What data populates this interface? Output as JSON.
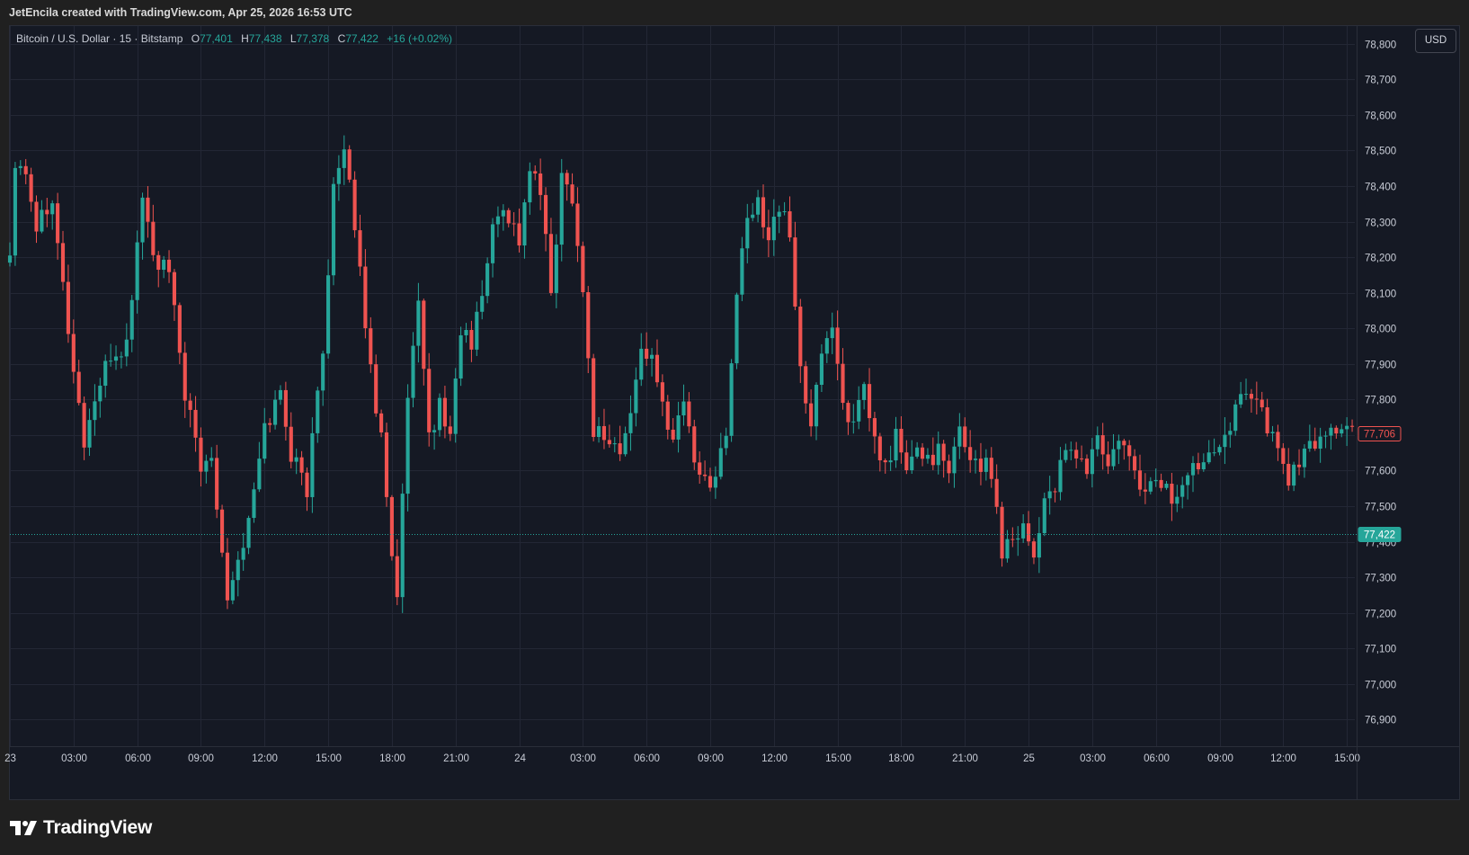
{
  "header": {
    "attribution": "JetEncila created with TradingView.com, Apr 25, 2026 16:53 UTC"
  },
  "legend": {
    "symbol": "Bitcoin / U.S. Dollar · 15 · Bitstamp",
    "open_label": "O",
    "open": "77,401",
    "high_label": "H",
    "high": "77,438",
    "low_label": "L",
    "low": "77,378",
    "close_label": "C",
    "close": "77,422",
    "change": "+16 (+0.02%)"
  },
  "toolbar": {
    "currency": "USD"
  },
  "footer": {
    "brand": "TradingView"
  },
  "colors": {
    "up": "#26a69a",
    "down": "#ef5350",
    "background": "#151924",
    "grid": "#232735",
    "axis_text": "#c8ccd6"
  },
  "chart_data": {
    "type": "candlestick",
    "y_ticks": [
      76900,
      77000,
      77100,
      77200,
      77300,
      77400,
      77500,
      77600,
      77700,
      77800,
      77900,
      78000,
      78100,
      78200,
      78300,
      78400,
      78500,
      78600,
      78700,
      78800
    ],
    "y_tick_labels": [
      "76,900",
      "77,000",
      "77,100",
      "77,200",
      "77,300",
      "77,400",
      "77,500",
      "77,600",
      "77,700",
      "77,800",
      "77,900",
      "78,000",
      "78,100",
      "78,200",
      "78,300",
      "78,400",
      "78,500",
      "78,600",
      "78,700",
      "78,800"
    ],
    "ylim": [
      76825,
      78850
    ],
    "x_ticks": [
      {
        "label": "23",
        "bar": 0
      },
      {
        "label": "03:00",
        "bar": 12
      },
      {
        "label": "06:00",
        "bar": 24
      },
      {
        "label": "09:00",
        "bar": 36
      },
      {
        "label": "12:00",
        "bar": 48
      },
      {
        "label": "15:00",
        "bar": 60
      },
      {
        "label": "18:00",
        "bar": 72
      },
      {
        "label": "21:00",
        "bar": 84
      },
      {
        "label": "24",
        "bar": 96
      },
      {
        "label": "03:00",
        "bar": 108
      },
      {
        "label": "06:00",
        "bar": 120
      },
      {
        "label": "09:00",
        "bar": 132
      },
      {
        "label": "12:00",
        "bar": 144
      },
      {
        "label": "15:00",
        "bar": 156
      },
      {
        "label": "18:00",
        "bar": 168
      },
      {
        "label": "21:00",
        "bar": 180
      },
      {
        "label": "25",
        "bar": 192
      },
      {
        "label": "03:00",
        "bar": 204
      },
      {
        "label": "06:00",
        "bar": 216
      },
      {
        "label": "09:00",
        "bar": 228
      },
      {
        "label": "12:00",
        "bar": 240
      },
      {
        "label": "15:00",
        "bar": 252
      }
    ],
    "price_labels": [
      {
        "value": 77706,
        "text": "77,706",
        "style": "outline-down"
      },
      {
        "value": 77422,
        "text": "77,422",
        "style": "filled-up",
        "line": true
      }
    ],
    "anchors": [
      [
        0,
        78210
      ],
      [
        1,
        78480
      ],
      [
        3,
        78450
      ],
      [
        5,
        78290
      ],
      [
        8,
        78380
      ],
      [
        10,
        78120
      ],
      [
        12,
        77880
      ],
      [
        14,
        77680
      ],
      [
        16,
        77800
      ],
      [
        19,
        77920
      ],
      [
        22,
        77950
      ],
      [
        25,
        78380
      ],
      [
        27,
        78200
      ],
      [
        30,
        78150
      ],
      [
        33,
        77820
      ],
      [
        36,
        77600
      ],
      [
        38,
        77650
      ],
      [
        41,
        77250
      ],
      [
        45,
        77450
      ],
      [
        48,
        77720
      ],
      [
        51,
        77820
      ],
      [
        53,
        77650
      ],
      [
        56,
        77550
      ],
      [
        59,
        77950
      ],
      [
        61,
        78400
      ],
      [
        63,
        78480
      ],
      [
        65,
        78300
      ],
      [
        68,
        77880
      ],
      [
        70,
        77700
      ],
      [
        72,
        77380
      ],
      [
        73,
        77230
      ],
      [
        75,
        77800
      ],
      [
        77,
        78050
      ],
      [
        79,
        77700
      ],
      [
        81,
        77780
      ],
      [
        83,
        77700
      ],
      [
        85,
        78000
      ],
      [
        87,
        77950
      ],
      [
        89,
        78100
      ],
      [
        91,
        78280
      ],
      [
        93,
        78350
      ],
      [
        96,
        78250
      ],
      [
        98,
        78450
      ],
      [
        100,
        78380
      ],
      [
        102,
        78100
      ],
      [
        104,
        78420
      ],
      [
        106,
        78380
      ],
      [
        108,
        78100
      ],
      [
        110,
        77720
      ],
      [
        112,
        77700
      ],
      [
        115,
        77650
      ],
      [
        117,
        77750
      ],
      [
        119,
        77960
      ],
      [
        121,
        77900
      ],
      [
        123,
        77780
      ],
      [
        125,
        77700
      ],
      [
        127,
        77800
      ],
      [
        129,
        77640
      ],
      [
        131,
        77560
      ],
      [
        133,
        77600
      ],
      [
        135,
        77700
      ],
      [
        137,
        78100
      ],
      [
        139,
        78300
      ],
      [
        141,
        78350
      ],
      [
        143,
        78270
      ],
      [
        145,
        78350
      ],
      [
        147,
        78250
      ],
      [
        149,
        77900
      ],
      [
        151,
        77700
      ],
      [
        153,
        77950
      ],
      [
        155,
        78000
      ],
      [
        157,
        77800
      ],
      [
        159,
        77720
      ],
      [
        161,
        77820
      ],
      [
        163,
        77680
      ],
      [
        165,
        77600
      ],
      [
        167,
        77700
      ],
      [
        169,
        77600
      ],
      [
        171,
        77650
      ],
      [
        173,
        77640
      ],
      [
        175,
        77650
      ],
      [
        177,
        77580
      ],
      [
        179,
        77720
      ],
      [
        181,
        77640
      ],
      [
        183,
        77620
      ],
      [
        185,
        77600
      ],
      [
        187,
        77380
      ],
      [
        189,
        77420
      ],
      [
        191,
        77450
      ],
      [
        193,
        77360
      ],
      [
        195,
        77520
      ],
      [
        197,
        77560
      ],
      [
        199,
        77640
      ],
      [
        201,
        77650
      ],
      [
        203,
        77600
      ],
      [
        205,
        77700
      ],
      [
        207,
        77600
      ],
      [
        209,
        77690
      ],
      [
        211,
        77620
      ],
      [
        213,
        77560
      ],
      [
        215,
        77560
      ],
      [
        217,
        77570
      ],
      [
        219,
        77520
      ],
      [
        221,
        77560
      ],
      [
        223,
        77600
      ],
      [
        225,
        77650
      ],
      [
        227,
        77670
      ],
      [
        229,
        77720
      ],
      [
        231,
        77760
      ],
      [
        233,
        77840
      ],
      [
        235,
        77800
      ],
      [
        237,
        77720
      ],
      [
        239,
        77660
      ],
      [
        241,
        77580
      ],
      [
        243,
        77620
      ],
      [
        245,
        77660
      ],
      [
        247,
        77700
      ],
      [
        249,
        77720
      ],
      [
        251,
        77720
      ],
      [
        253,
        77710
      ]
    ],
    "bar_count": 254
  }
}
